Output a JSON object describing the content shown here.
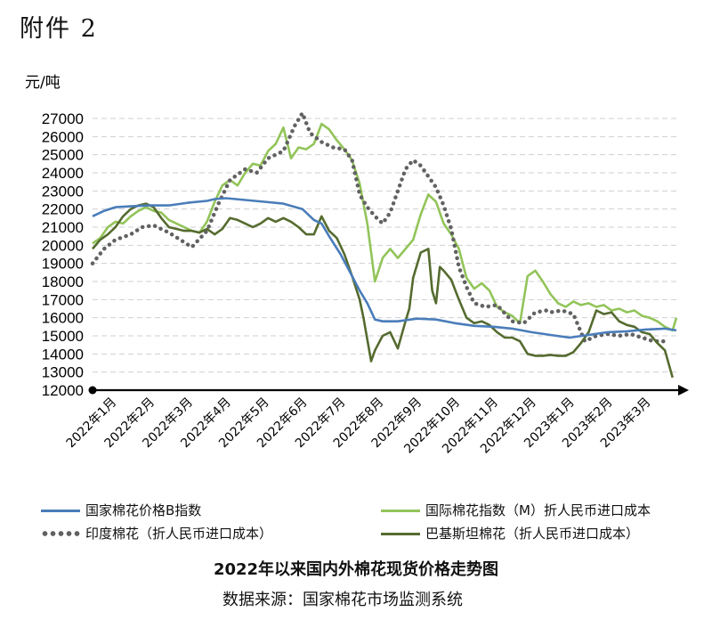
{
  "header": {
    "attachment_label": "附件 2"
  },
  "chart_data": {
    "type": "line",
    "title": "2022年以来国内外棉花现货价格走势图",
    "source": "数据来源：国家棉花市场监测系统",
    "ylabel": "元/吨",
    "ylim": [
      12000,
      27000
    ],
    "yticks": [
      "27000",
      "26000",
      "25000",
      "24000",
      "23000",
      "22000",
      "21000",
      "20000",
      "19000",
      "18000",
      "17000",
      "16000",
      "15000",
      "14000",
      "13000",
      "12000"
    ],
    "x_tick_labels": [
      "2022年1月",
      "2022年2月",
      "2022年3月",
      "2022年4月",
      "2022年5月",
      "2022年6月",
      "2022年7月",
      "2022年8月",
      "2022年9月",
      "2022年10月",
      "2022年11月",
      "2022年12月",
      "2023年1月",
      "2023年2月",
      "2023年3月"
    ],
    "xlim": [
      0,
      15.3
    ],
    "grid": true,
    "legend_position": "bottom",
    "series": [
      {
        "name": "国家棉花价格B指数",
        "color": "#4a7dba",
        "style": "solid",
        "x": [
          0,
          0.3,
          0.6,
          1,
          1.5,
          2,
          2.5,
          3,
          3.2,
          3.5,
          4,
          4.5,
          5,
          5.5,
          5.8,
          6,
          6.2,
          6.5,
          6.8,
          7,
          7.2,
          7.4,
          7.6,
          7.8,
          8,
          8.5,
          9,
          9.5,
          10,
          10.5,
          11,
          11.5,
          12,
          12.5,
          13,
          13.5,
          14,
          14.5,
          15,
          15.3
        ],
        "y": [
          21600,
          21900,
          22100,
          22150,
          22200,
          22200,
          22350,
          22450,
          22550,
          22600,
          22500,
          22400,
          22300,
          22000,
          21400,
          21200,
          20500,
          19500,
          18300,
          17500,
          16800,
          15900,
          15800,
          15800,
          15800,
          15950,
          15900,
          15700,
          15550,
          15500,
          15400,
          15200,
          15050,
          14900,
          15050,
          15200,
          15250,
          15350,
          15400,
          15300
        ]
      },
      {
        "name": "国际棉花指数（M）折人民币进口成本",
        "color": "#92c459",
        "style": "solid",
        "x": [
          0,
          0.2,
          0.4,
          0.6,
          0.8,
          1,
          1.2,
          1.4,
          1.6,
          1.8,
          2,
          2.2,
          2.4,
          2.6,
          2.8,
          3,
          3.2,
          3.4,
          3.6,
          3.8,
          4,
          4.2,
          4.4,
          4.6,
          4.8,
          5,
          5.2,
          5.4,
          5.6,
          5.8,
          6,
          6.2,
          6.4,
          6.6,
          6.8,
          7,
          7.2,
          7.4,
          7.6,
          7.8,
          8,
          8.2,
          8.4,
          8.6,
          8.8,
          9,
          9.2,
          9.4,
          9.6,
          9.8,
          10,
          10.2,
          10.4,
          10.6,
          10.8,
          11,
          11.2,
          11.4,
          11.6,
          11.8,
          12,
          12.2,
          12.4,
          12.6,
          12.8,
          13,
          13.2,
          13.4,
          13.6,
          13.8,
          14,
          14.2,
          14.4,
          14.6,
          14.8,
          15,
          15.2,
          15.3
        ],
        "y": [
          20100,
          20400,
          21000,
          21300,
          21200,
          21600,
          21900,
          22100,
          21900,
          21800,
          21400,
          21200,
          21000,
          20800,
          20700,
          21300,
          22400,
          23300,
          23600,
          23300,
          24000,
          24500,
          24400,
          25200,
          25600,
          26500,
          24800,
          25400,
          25300,
          25600,
          26700,
          26400,
          25800,
          25300,
          24700,
          23400,
          21200,
          18000,
          19300,
          19800,
          19300,
          19800,
          20300,
          21700,
          22800,
          22400,
          21200,
          20600,
          19800,
          18200,
          17600,
          17900,
          17500,
          16600,
          16300,
          16100,
          15700,
          18300,
          18600,
          18000,
          17300,
          16800,
          16600,
          16900,
          16700,
          16800,
          16600,
          16700,
          16400,
          16500,
          16300,
          16400,
          16100,
          16000,
          15800,
          15500,
          15300,
          16000
        ]
      },
      {
        "name": "印度棉花（折人民币进口成本）",
        "color": "#626262",
        "style": "dotted",
        "x": [
          0,
          0.3,
          0.6,
          1,
          1.3,
          1.6,
          2,
          2.3,
          2.6,
          3,
          3.3,
          3.6,
          4,
          4.3,
          4.6,
          5,
          5.3,
          5.5,
          5.7,
          6,
          6.3,
          6.6,
          6.8,
          7,
          7.2,
          7.4,
          7.6,
          7.8,
          8,
          8.2,
          8.4,
          8.6,
          8.8,
          9,
          9.2,
          9.4,
          9.6,
          9.8,
          10,
          10.3,
          10.6,
          11,
          11.3,
          11.6,
          11.9,
          12,
          12.3,
          12.6,
          12.9,
          13.2,
          13.5,
          13.8,
          14.1,
          14.4,
          14.7,
          15
        ],
        "y": [
          19000,
          19800,
          20300,
          20600,
          21000,
          21100,
          20700,
          20300,
          19900,
          20800,
          22300,
          23600,
          24200,
          24000,
          24800,
          25200,
          26600,
          27300,
          26200,
          25700,
          25400,
          25300,
          24700,
          22800,
          22100,
          21600,
          21200,
          21800,
          23000,
          24200,
          24700,
          24400,
          23800,
          23200,
          22200,
          20900,
          18800,
          17700,
          16800,
          16600,
          16700,
          15800,
          15700,
          16300,
          16400,
          16300,
          16400,
          16200,
          14700,
          15000,
          15100,
          15000,
          15100,
          14900,
          14700,
          14700
        ]
      },
      {
        "name": "巴基斯坦棉花（折人民币进口成本）",
        "color": "#556b2f",
        "style": "solid",
        "x": [
          0,
          0.2,
          0.4,
          0.6,
          0.8,
          1,
          1.2,
          1.4,
          1.6,
          1.8,
          2,
          2.2,
          2.4,
          2.6,
          2.8,
          3,
          3.2,
          3.4,
          3.6,
          3.8,
          4,
          4.2,
          4.4,
          4.6,
          4.8,
          5,
          5.2,
          5.4,
          5.6,
          5.8,
          6,
          6.2,
          6.4,
          6.6,
          6.8,
          7,
          7.1,
          7.2,
          7.3,
          7.4,
          7.6,
          7.8,
          8,
          8.2,
          8.3,
          8.4,
          8.6,
          8.8,
          8.9,
          9,
          9.1,
          9.2,
          9.4,
          9.6,
          9.8,
          10,
          10.2,
          10.4,
          10.6,
          10.8,
          11,
          11.2,
          11.4,
          11.6,
          11.8,
          12,
          12.2,
          12.4,
          12.6,
          12.8,
          13,
          13.2,
          13.4,
          13.6,
          13.8,
          14,
          14.2,
          14.4,
          14.6,
          14.8,
          15,
          15.2
        ],
        "y": [
          19800,
          20300,
          20600,
          21000,
          21600,
          22000,
          22200,
          22300,
          22100,
          21500,
          21000,
          20900,
          20800,
          20800,
          20700,
          20900,
          20600,
          20900,
          21500,
          21400,
          21200,
          21000,
          21200,
          21500,
          21300,
          21500,
          21300,
          21000,
          20600,
          20600,
          21600,
          20800,
          20400,
          19500,
          18300,
          17000,
          16000,
          14800,
          13600,
          14200,
          15000,
          15200,
          14300,
          15800,
          16500,
          18200,
          19600,
          19800,
          17500,
          16800,
          18800,
          18600,
          18100,
          17000,
          16000,
          15700,
          15800,
          15600,
          15200,
          14900,
          14900,
          14700,
          14000,
          13900,
          13900,
          13950,
          13900,
          13900,
          14100,
          14600,
          15200,
          16400,
          16200,
          16300,
          15800,
          15600,
          15500,
          15200,
          15100,
          14600,
          14200,
          12700
        ]
      }
    ]
  }
}
